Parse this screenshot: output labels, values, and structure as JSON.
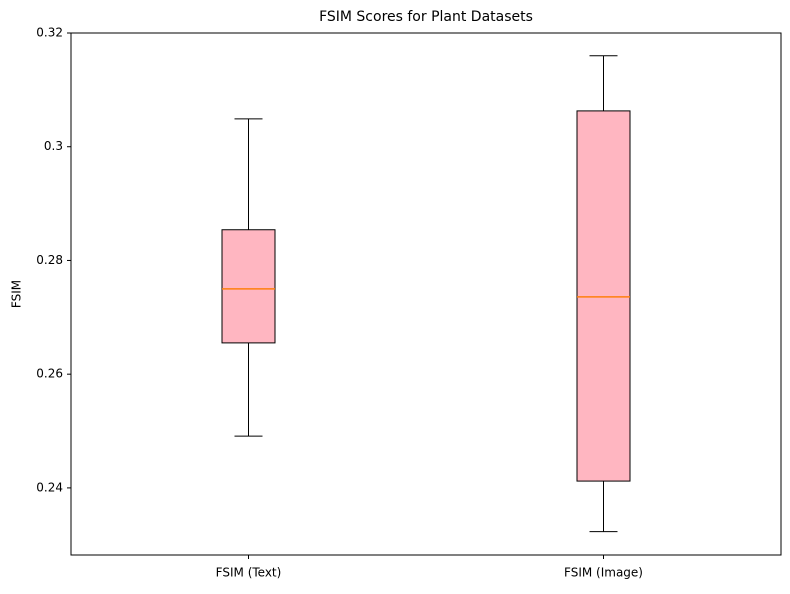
{
  "chart_data": {
    "type": "box",
    "title": "FSIM Scores for Plant Datasets",
    "y_label": "FSIM",
    "categories": [
      "FSIM (Text)",
      "FSIM (Image)"
    ],
    "boxes": [
      {
        "whislo": 0.2491,
        "q1": 0.2655,
        "med": 0.275,
        "q3": 0.2854,
        "whishi": 0.3049
      },
      {
        "whislo": 0.2323,
        "q1": 0.2412,
        "med": 0.2736,
        "q3": 0.3063,
        "whishi": 0.316
      }
    ],
    "color": "#ffb6c1",
    "median_color": "#ff7f0e",
    "ylim": [
      0.2282,
      0.32
    ],
    "yticks": [
      0.24,
      0.26,
      0.28,
      0.3,
      0.32
    ],
    "grid": false
  }
}
